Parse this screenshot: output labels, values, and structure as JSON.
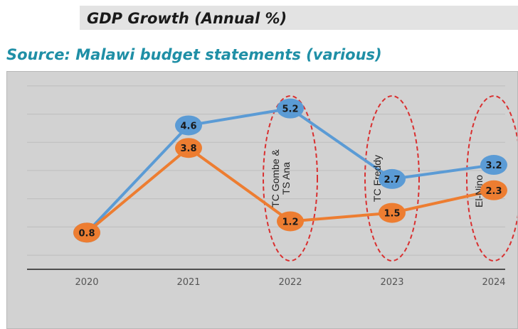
{
  "header": {
    "title": "GDP Growth (Annual %)",
    "source": "Source: Malawi budget statements (various)"
  },
  "chart_data": {
    "type": "line",
    "categories": [
      "2020",
      "2021",
      "2022",
      "2023",
      "2024"
    ],
    "series": [
      {
        "values": [
          0.8,
          4.6,
          5.2,
          2.7,
          3.2
        ],
        "color": "#5b9bd5"
      },
      {
        "values": [
          0.8,
          3.8,
          1.2,
          1.5,
          2.3
        ],
        "color": "#ed7d31"
      }
    ],
    "ylim": [
      -0.5,
      6.5
    ],
    "grid": true,
    "annotations": [
      {
        "category": "2022",
        "text": [
          "TC Gombe &",
          "TS Ana"
        ]
      },
      {
        "category": "2023",
        "text": [
          "TC Freddy"
        ]
      },
      {
        "category": "2024",
        "text": [
          "El-Nino"
        ]
      }
    ],
    "annotation_style": {
      "ellipse_color": "#d93030"
    }
  }
}
